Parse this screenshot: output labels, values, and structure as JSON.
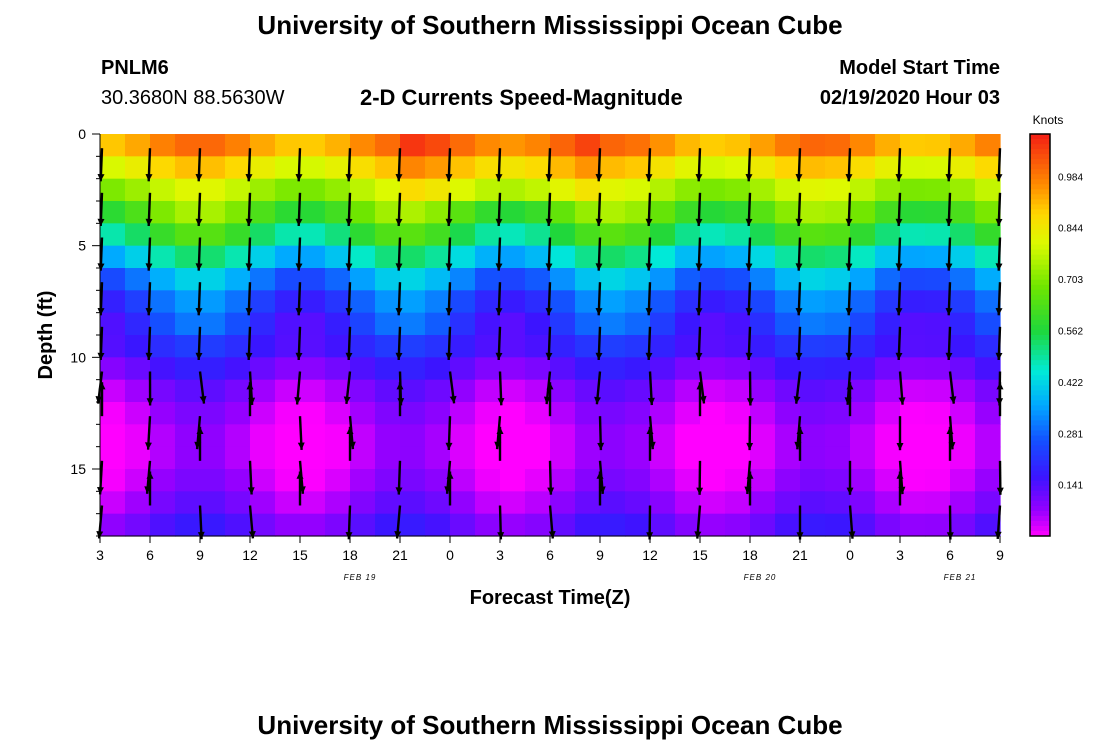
{
  "page": {
    "title_top": "University of Southern Mississippi Ocean Cube",
    "title_bottom": "University of Southern Mississippi Ocean Cube",
    "station": "PNLM6",
    "coords": "30.3680N 88.5630W",
    "subtitle": "2-D Currents Speed-Magnitude",
    "model_label": "Model Start Time",
    "model_time": "02/19/2020 Hour 03"
  },
  "chart_data": {
    "type": "heatmap",
    "title": "2-D Currents Speed-Magnitude",
    "xlabel": "Forecast Time(Z)",
    "ylabel": "Depth (ft)",
    "colorbar_label": "Knots",
    "colorbar_ticks": [
      "0.984",
      "0.844",
      "0.703",
      "0.562",
      "0.422",
      "0.281",
      "0.141"
    ],
    "colorbar_range": [
      0.0,
      1.1
    ],
    "x_tick_labels": [
      "3",
      "6",
      "9",
      "12",
      "15",
      "18",
      "21",
      "0",
      "3",
      "6",
      "9",
      "12",
      "15",
      "18",
      "21",
      "0",
      "3",
      "6",
      "9"
    ],
    "date_labels": [
      "FEB 19",
      "FEB 20",
      "FEB 21"
    ],
    "y_ticks": [
      "0",
      "5",
      "10",
      "15"
    ],
    "ylim": [
      0,
      18
    ],
    "depths_ft": [
      0.5,
      1.5,
      2.5,
      3.5,
      4.5,
      5.5,
      6.5,
      7.5,
      8.5,
      9.5,
      10.5,
      11.5,
      12.5,
      13.5,
      14.5,
      15.5,
      16.5,
      17.5
    ],
    "speed_profile": {
      "depths_ft": [
        0,
        1,
        2,
        3,
        4,
        5,
        6,
        7,
        8,
        9,
        10,
        11,
        12,
        14,
        16,
        18
      ],
      "knots": [
        1.0,
        0.9,
        0.8,
        0.7,
        0.62,
        0.5,
        0.38,
        0.28,
        0.24,
        0.2,
        0.16,
        0.1,
        0.06,
        0.02,
        0.06,
        0.14
      ]
    },
    "arrows": "current direction vectors drawn every 3 hours at each depth row"
  }
}
